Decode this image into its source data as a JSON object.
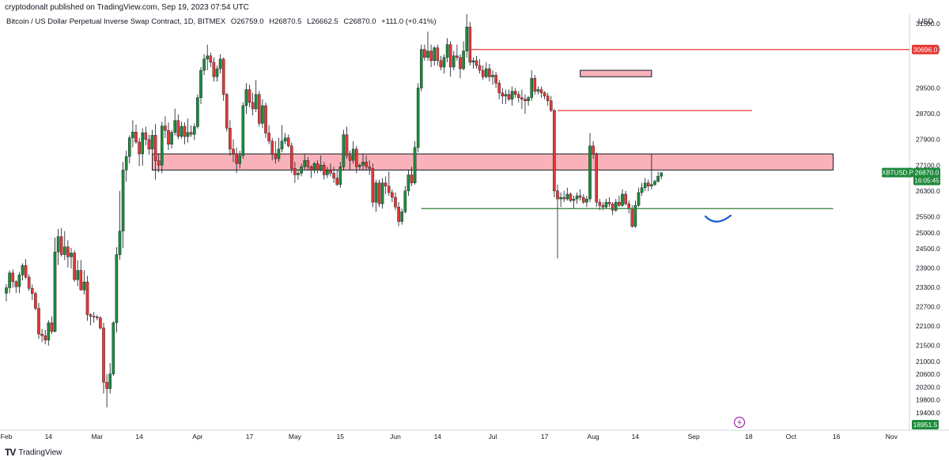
{
  "header": {
    "published": "cryptodonalt published on TradingView.com, Sep 19, 2023 07:54 UTC",
    "symbol_description": "Bitcoin / US Dollar Perpetual Inverse Swap Contract, 1D, BITMEX",
    "open": "O26759.0",
    "high": "H26870.5",
    "low": "L26662.5",
    "close": "C26870.0",
    "change": "+111.0 (+0.41%)",
    "currency": "USD"
  },
  "footer": {
    "brand": "TradingView",
    "logo_text": "TV"
  },
  "colors": {
    "up": "#26a69a",
    "up_body": "#1e8a3c",
    "down": "#e53935",
    "zone_fill": "#f8a5ad",
    "zone_stroke": "#131722",
    "resistance": "#e53935",
    "support": "#2e7d32",
    "curve": "#1e5ad8",
    "price_tag": "#1e8a3c",
    "red_tag": "#e53935"
  },
  "chart_data": {
    "type": "candlestick",
    "ylim": [
      19000,
      31900
    ],
    "y_ticks": [
      31500,
      30700,
      29500,
      28700,
      27900,
      27100,
      26300,
      25500,
      25000,
      24500,
      23900,
      23300,
      22700,
      22100,
      21500,
      21000,
      20600,
      20200,
      19800,
      19400
    ],
    "y_tick_labels": [
      "31500.0",
      "30700.0",
      "29500.0",
      "28700.0",
      "27900.0",
      "27100.0",
      "26300.0",
      "25500.0",
      "25000.0",
      "24500.0",
      "23900.0",
      "23300.0",
      "22700.0",
      "22100.0",
      "21500.0",
      "21000.0",
      "20600.0",
      "20200.0",
      "19800.0",
      "19400.0"
    ],
    "x_ticks": [
      "Feb",
      "14",
      "Mar",
      "14",
      "Apr",
      "17",
      "May",
      "15",
      "Jun",
      "14",
      "Jul",
      "17",
      "Aug",
      "14",
      "Sep",
      "18",
      "Oct",
      "16",
      "Nov"
    ],
    "x_tick_days": [
      0,
      13,
      28,
      41,
      59,
      75,
      89,
      103,
      120,
      133,
      150,
      166,
      181,
      194,
      212,
      229,
      242,
      256,
      273
    ],
    "price_labels": {
      "last_symbol": "XBTUSD.P",
      "last_price": "26870.0",
      "countdown": "16:05:45",
      "resistance_level": "30696.0",
      "low_marker": "18951.5"
    },
    "levels": [
      {
        "kind": "zone",
        "from_day": 45,
        "to_day": 255,
        "low": 26950,
        "high": 27450
      },
      {
        "kind": "zone",
        "from_day": 177,
        "to_day": 199,
        "low": 29850,
        "high": 30050
      },
      {
        "kind": "line",
        "color": "resistance",
        "from_day": 143,
        "to_day": 280,
        "value": 30696
      },
      {
        "kind": "line",
        "color": "resistance",
        "from_day": 170,
        "to_day": 230,
        "value": 28800
      },
      {
        "kind": "line",
        "color": "support",
        "from_day": 128,
        "to_day": 255,
        "value": 25750
      }
    ],
    "ohlc": [
      [
        23120,
        23400,
        22860,
        23290
      ],
      [
        23290,
        23830,
        23120,
        23750
      ],
      [
        23750,
        23860,
        23290,
        23480
      ],
      [
        23480,
        23520,
        23130,
        23320
      ],
      [
        23320,
        23780,
        23120,
        23690
      ],
      [
        23690,
        24050,
        23520,
        23980
      ],
      [
        23980,
        24180,
        23560,
        23620
      ],
      [
        23620,
        23710,
        23190,
        23270
      ],
      [
        23270,
        23390,
        22900,
        23110
      ],
      [
        23110,
        23160,
        22580,
        22650
      ],
      [
        22650,
        22820,
        21700,
        21850
      ],
      [
        21850,
        22010,
        21600,
        21800
      ],
      [
        21800,
        21980,
        21530,
        21660
      ],
      [
        21660,
        22280,
        21490,
        22200
      ],
      [
        22200,
        22400,
        21850,
        21930
      ],
      [
        21930,
        24850,
        21900,
        24400
      ],
      [
        24400,
        25120,
        24000,
        24880
      ],
      [
        24880,
        25150,
        24260,
        24320
      ],
      [
        24320,
        25050,
        24150,
        24560
      ],
      [
        24560,
        24770,
        23920,
        24250
      ],
      [
        24250,
        24530,
        23890,
        24370
      ],
      [
        24370,
        24450,
        23480,
        23540
      ],
      [
        23540,
        24150,
        23340,
        23830
      ],
      [
        23830,
        24150,
        23200,
        23220
      ],
      [
        23220,
        23830,
        23080,
        23470
      ],
      [
        23470,
        23660,
        22260,
        22450
      ],
      [
        22450,
        22500,
        22120,
        22400
      ],
      [
        22400,
        22540,
        22200,
        22380
      ],
      [
        22380,
        22440,
        22280,
        22350
      ],
      [
        22350,
        22410,
        21990,
        22040
      ],
      [
        22040,
        22200,
        20000,
        20350
      ],
      [
        20350,
        20600,
        19570,
        20150
      ],
      [
        20150,
        20950,
        20000,
        20610
      ],
      [
        20610,
        22250,
        20550,
        22200
      ],
      [
        22200,
        24550,
        21900,
        24320
      ],
      [
        24320,
        26300,
        24160,
        25050
      ],
      [
        25050,
        27200,
        24530,
        26950
      ],
      [
        26950,
        27550,
        26590,
        27370
      ],
      [
        27370,
        28030,
        27150,
        27950
      ],
      [
        27950,
        28500,
        27660,
        28130
      ],
      [
        28130,
        28360,
        27770,
        27820
      ],
      [
        27820,
        27950,
        27070,
        27450
      ],
      [
        27450,
        28250,
        27080,
        28110
      ],
      [
        28110,
        28300,
        27720,
        27900
      ],
      [
        27900,
        28050,
        27430,
        27600
      ],
      [
        27600,
        28200,
        27360,
        28030
      ],
      [
        28030,
        28380,
        26650,
        27240
      ],
      [
        27240,
        27470,
        26880,
        27100
      ],
      [
        27100,
        28450,
        26850,
        28320
      ],
      [
        28320,
        28620,
        27940,
        28180
      ],
      [
        28180,
        28430,
        27570,
        27750
      ],
      [
        27750,
        28200,
        27620,
        28120
      ],
      [
        28120,
        28860,
        28020,
        28490
      ],
      [
        28490,
        28680,
        27910,
        28000
      ],
      [
        28000,
        28460,
        27930,
        28310
      ],
      [
        28310,
        28430,
        27750,
        27990
      ],
      [
        27990,
        28550,
        27800,
        28120
      ],
      [
        28120,
        28340,
        27980,
        28060
      ],
      [
        28060,
        28400,
        27880,
        28300
      ],
      [
        28300,
        29300,
        28240,
        29200
      ],
      [
        29200,
        30150,
        29000,
        30050
      ],
      [
        30050,
        30550,
        29900,
        30400
      ],
      [
        30400,
        30850,
        30050,
        30500
      ],
      [
        30500,
        30600,
        30150,
        30300
      ],
      [
        30300,
        30450,
        29700,
        29850
      ],
      [
        29850,
        30200,
        29700,
        30100
      ],
      [
        30100,
        30550,
        29950,
        30400
      ],
      [
        30400,
        30450,
        29100,
        29300
      ],
      [
        29300,
        29350,
        28150,
        28250
      ],
      [
        28250,
        28500,
        27400,
        27600
      ],
      [
        27600,
        27900,
        27200,
        27450
      ],
      [
        27450,
        27650,
        26850,
        27150
      ],
      [
        27150,
        27550,
        27000,
        27400
      ],
      [
        27400,
        29050,
        27300,
        28950
      ],
      [
        28950,
        29650,
        28700,
        29450
      ],
      [
        29450,
        29600,
        28900,
        29050
      ],
      [
        29050,
        29350,
        28650,
        28850
      ],
      [
        28850,
        29750,
        28750,
        29300
      ],
      [
        29300,
        29400,
        28300,
        28400
      ],
      [
        28400,
        29150,
        28250,
        28950
      ],
      [
        28950,
        29050,
        27950,
        28100
      ],
      [
        28100,
        28350,
        27750,
        27850
      ],
      [
        27850,
        27950,
        27250,
        27450
      ],
      [
        27450,
        27850,
        27150,
        27300
      ],
      [
        27300,
        27950,
        27200,
        27600
      ],
      [
        27600,
        28350,
        27500,
        27850
      ],
      [
        27850,
        28100,
        27750,
        27950
      ],
      [
        27950,
        28050,
        27650,
        27700
      ],
      [
        27700,
        27800,
        26850,
        27000
      ],
      [
        27000,
        27200,
        26550,
        26800
      ],
      [
        26800,
        26950,
        26650,
        26850
      ],
      [
        26850,
        27150,
        26750,
        27050
      ],
      [
        27050,
        27450,
        26950,
        27250
      ],
      [
        27250,
        27350,
        26950,
        27050
      ],
      [
        27050,
        27100,
        26700,
        26950
      ],
      [
        26950,
        27200,
        26850,
        27150
      ],
      [
        27150,
        27250,
        26850,
        26950
      ],
      [
        26950,
        27400,
        26900,
        27100
      ],
      [
        27100,
        27200,
        26650,
        26800
      ],
      [
        26800,
        27050,
        26700,
        26950
      ],
      [
        26950,
        27150,
        26750,
        26850
      ],
      [
        26850,
        27050,
        26550,
        26700
      ],
      [
        26700,
        26950,
        26450,
        26500
      ],
      [
        26500,
        27200,
        26400,
        27050
      ],
      [
        27050,
        28200,
        26950,
        28050
      ],
      [
        28050,
        28300,
        27300,
        27400
      ],
      [
        27400,
        27550,
        26950,
        27250
      ],
      [
        27250,
        27850,
        27150,
        27600
      ],
      [
        27600,
        27700,
        26850,
        27050
      ],
      [
        27050,
        27150,
        26950,
        27100
      ],
      [
        27100,
        27450,
        26950,
        27200
      ],
      [
        27200,
        27400,
        26950,
        27050
      ],
      [
        27050,
        27250,
        26800,
        27000
      ],
      [
        27000,
        27150,
        25800,
        25950
      ],
      [
        25950,
        26650,
        25650,
        26550
      ],
      [
        26550,
        26650,
        25800,
        25900
      ],
      [
        25900,
        26700,
        25750,
        26550
      ],
      [
        26550,
        26750,
        26200,
        26450
      ],
      [
        26450,
        26900,
        26150,
        26250
      ],
      [
        26250,
        26350,
        25950,
        26100
      ],
      [
        26100,
        26250,
        25700,
        25800
      ],
      [
        25800,
        25950,
        25200,
        25350
      ],
      [
        25350,
        25750,
        25250,
        25650
      ],
      [
        25650,
        26450,
        25600,
        26300
      ],
      [
        26300,
        26950,
        26150,
        26800
      ],
      [
        26800,
        27050,
        26450,
        26550
      ],
      [
        26550,
        27850,
        26500,
        27650
      ],
      [
        27650,
        29650,
        27500,
        29500
      ],
      [
        29500,
        30850,
        29400,
        30700
      ],
      [
        30700,
        30850,
        30350,
        30450
      ],
      [
        30450,
        31250,
        30350,
        30650
      ],
      [
        30650,
        30850,
        30150,
        30350
      ],
      [
        30350,
        30800,
        30200,
        30750
      ],
      [
        30750,
        30850,
        30200,
        30350
      ],
      [
        30350,
        30500,
        30050,
        30150
      ],
      [
        30150,
        30550,
        29950,
        30450
      ],
      [
        30450,
        31050,
        30300,
        30850
      ],
      [
        30850,
        30950,
        29850,
        30150
      ],
      [
        30150,
        30650,
        30050,
        30500
      ],
      [
        30500,
        30850,
        30350,
        30450
      ],
      [
        30450,
        30550,
        29800,
        30100
      ],
      [
        30100,
        30950,
        30050,
        30650
      ],
      [
        30650,
        31800,
        30450,
        31400
      ],
      [
        31400,
        31550,
        30200,
        30300
      ],
      [
        30300,
        30450,
        30100,
        30350
      ],
      [
        30350,
        30500,
        30100,
        30200
      ],
      [
        30200,
        30400,
        29950,
        30050
      ],
      [
        30050,
        30200,
        29750,
        29850
      ],
      [
        29850,
        30300,
        29800,
        30100
      ],
      [
        30100,
        30250,
        29700,
        29850
      ],
      [
        29850,
        30050,
        29600,
        29900
      ],
      [
        29900,
        30000,
        29500,
        29650
      ],
      [
        29650,
        29750,
        29150,
        29350
      ],
      [
        29350,
        29500,
        29000,
        29250
      ],
      [
        29250,
        29450,
        29000,
        29300
      ],
      [
        29300,
        29450,
        29100,
        29150
      ],
      [
        29150,
        29550,
        28950,
        29400
      ],
      [
        29400,
        29500,
        29200,
        29300
      ],
      [
        29300,
        29400,
        29050,
        29200
      ],
      [
        29200,
        29450,
        28850,
        29150
      ],
      [
        29150,
        29300,
        28700,
        29100
      ],
      [
        29100,
        29250,
        28950,
        29200
      ],
      [
        29200,
        30050,
        29100,
        29800
      ],
      [
        29800,
        29900,
        29300,
        29400
      ],
      [
        29400,
        29550,
        29300,
        29450
      ],
      [
        29450,
        29550,
        29200,
        29350
      ],
      [
        29350,
        29400,
        29150,
        29250
      ],
      [
        29250,
        29350,
        28950,
        29100
      ],
      [
        29100,
        29250,
        28750,
        28800
      ],
      [
        28800,
        28850,
        26100,
        26300
      ],
      [
        26300,
        26500,
        24200,
        26050
      ],
      [
        26050,
        26250,
        25800,
        26100
      ],
      [
        26100,
        26300,
        25950,
        26050
      ],
      [
        26050,
        26400,
        26000,
        26200
      ],
      [
        26200,
        26250,
        25950,
        26000
      ],
      [
        26000,
        26150,
        25750,
        26050
      ],
      [
        26050,
        26250,
        25900,
        26150
      ],
      [
        26150,
        26350,
        26000,
        26100
      ],
      [
        26100,
        26200,
        25900,
        25950
      ],
      [
        25950,
        26150,
        25800,
        26050
      ],
      [
        26050,
        28100,
        25950,
        27700
      ],
      [
        27700,
        27850,
        27300,
        27450
      ],
      [
        27450,
        27500,
        25800,
        25950
      ],
      [
        25950,
        26050,
        25700,
        25850
      ],
      [
        25850,
        25950,
        25700,
        25800
      ],
      [
        25800,
        26050,
        25750,
        25950
      ],
      [
        25950,
        26100,
        25800,
        25900
      ],
      [
        25900,
        25950,
        25550,
        25700
      ],
      [
        25700,
        26050,
        25650,
        25950
      ],
      [
        25950,
        26150,
        25800,
        25850
      ],
      [
        25850,
        26350,
        25800,
        26200
      ],
      [
        26200,
        26300,
        25850,
        25900
      ],
      [
        25900,
        26000,
        25600,
        25750
      ],
      [
        25750,
        25850,
        25150,
        25200
      ],
      [
        25200,
        26000,
        25150,
        25850
      ],
      [
        25850,
        26400,
        25800,
        26250
      ],
      [
        26250,
        26550,
        26150,
        26400
      ],
      [
        26400,
        26700,
        26300,
        26550
      ],
      [
        26550,
        26650,
        26300,
        26450
      ],
      [
        26450,
        27450,
        26350,
        26500
      ],
      [
        26500,
        26650,
        26450,
        26600
      ],
      [
        26600,
        26900,
        26550,
        26759
      ],
      [
        26759,
        26870,
        26662,
        26870
      ]
    ]
  }
}
